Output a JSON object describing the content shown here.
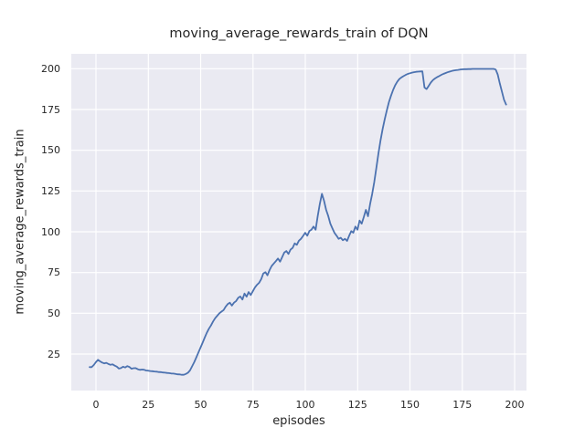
{
  "chart_data": {
    "type": "line",
    "title": "moving_average_rewards_train of DQN",
    "xlabel": "episodes",
    "ylabel": "moving_average_rewards_train",
    "x_ticks": [
      0,
      25,
      50,
      75,
      100,
      125,
      150,
      175,
      200
    ],
    "y_ticks": [
      25,
      50,
      75,
      100,
      125,
      150,
      175,
      200
    ],
    "xlim": [
      -8.7,
      208.7
    ],
    "ylim": [
      2.5,
      209.2
    ],
    "grid": true,
    "legend": false,
    "plot_background": "#eaeaf2",
    "gridline_color": "#ffffff",
    "line_color": "#4c72b0",
    "text_color": "#262626",
    "series": [
      {
        "name": "moving_average_rewards_train",
        "x_start_episode": 0,
        "x_step": 1,
        "values": [
          17.0,
          17.0,
          18.3,
          20.0,
          21.5,
          20.5,
          19.8,
          19.3,
          19.6,
          18.9,
          18.4,
          18.7,
          17.9,
          17.3,
          16.1,
          16.4,
          17.2,
          16.8,
          17.6,
          17.1,
          16.0,
          16.3,
          16.4,
          15.7,
          15.3,
          15.5,
          15.4,
          14.9,
          14.8,
          14.6,
          14.5,
          14.3,
          14.2,
          14.0,
          13.9,
          13.7,
          13.6,
          13.4,
          13.3,
          13.1,
          13.0,
          12.8,
          12.6,
          12.5,
          12.3,
          12.3,
          12.8,
          13.5,
          15.0,
          17.5,
          20.0,
          23.0,
          26.0,
          29.0,
          32.0,
          35.0,
          38.0,
          40.5,
          42.5,
          45.0,
          47.0,
          48.5,
          50.0,
          51.0,
          52.0,
          54.0,
          55.6,
          56.5,
          54.7,
          56.5,
          57.5,
          59.5,
          60.3,
          58.4,
          62.1,
          60.2,
          63.0,
          61.2,
          63.5,
          65.8,
          67.5,
          68.7,
          71.0,
          74.5,
          75.2,
          73.3,
          76.5,
          79.0,
          80.5,
          82.0,
          83.6,
          81.7,
          84.5,
          87.3,
          88.2,
          86.4,
          89.0,
          90.1,
          92.9,
          92.0,
          94.5,
          95.7,
          97.5,
          99.4,
          97.6,
          100.5,
          101.3,
          103.2,
          101.3,
          109.7,
          117.1,
          123.3,
          119.0,
          113.4,
          109.7,
          105.0,
          102.2,
          99.4,
          97.6,
          95.7,
          96.3,
          94.8,
          95.7,
          94.4,
          97.6,
          100.4,
          99.4,
          103.2,
          101.3,
          106.9,
          105.0,
          109.0,
          113.4,
          109.5,
          117.0,
          123.0,
          130.3,
          139.0,
          148.0,
          156.0,
          163.0,
          169.0,
          174.5,
          179.5,
          183.5,
          187.0,
          189.8,
          192.0,
          193.7,
          194.7,
          195.5,
          196.2,
          196.8,
          197.2,
          197.6,
          197.9,
          198.1,
          198.2,
          198.3,
          198.4,
          188.5,
          187.5,
          189.5,
          191.5,
          193.0,
          194.0,
          194.8,
          195.5,
          196.2,
          196.8,
          197.3,
          197.8,
          198.2,
          198.6,
          198.9,
          199.1,
          199.3,
          199.5,
          199.6,
          199.7,
          199.7,
          199.8,
          199.8,
          199.9,
          199.9,
          199.9,
          199.9,
          199.9,
          199.9,
          199.9,
          199.9,
          199.9,
          199.9,
          199.9,
          199.5,
          196.5,
          191.0,
          186.0,
          181.0,
          178.0
        ]
      }
    ]
  }
}
